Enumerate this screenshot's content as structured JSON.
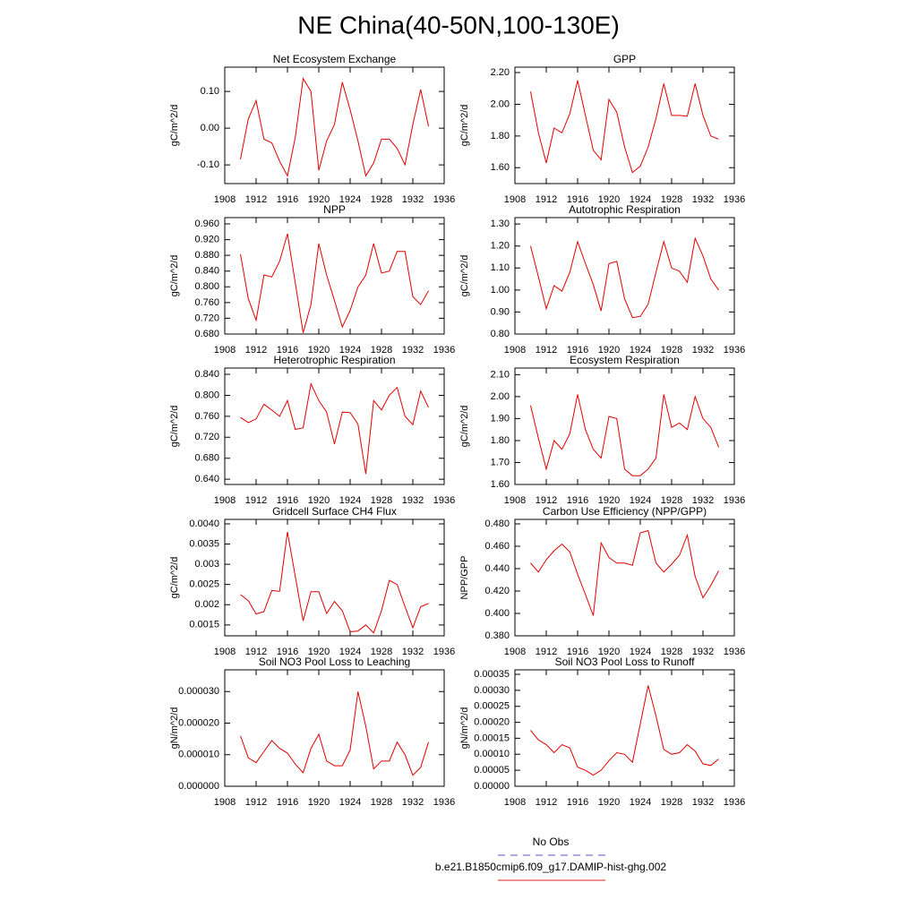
{
  "title": "NE China(40-50N,100-130E)",
  "legend": [
    {
      "name": "No Obs",
      "color": "#5555cc",
      "dashed": true
    },
    {
      "name": "b.e21.B1850cmip6.f09_g17.DAMIP-hist-ghg.002",
      "color": "#e02020",
      "dashed": false
    }
  ],
  "chart_data": [
    {
      "type": "line",
      "title": "Net Ecosystem Exchange",
      "y_label": "gC/m^2/d",
      "color": "#e00000",
      "x": [
        1910,
        1911,
        1912,
        1913,
        1914,
        1915,
        1916,
        1917,
        1918,
        1919,
        1920,
        1921,
        1922,
        1923,
        1924,
        1925,
        1926,
        1927,
        1928,
        1929,
        1930,
        1931,
        1932,
        1933,
        1934
      ],
      "values": [
        -0.085,
        0.025,
        0.075,
        -0.03,
        -0.04,
        -0.09,
        -0.13,
        -0.025,
        0.135,
        0.1,
        -0.115,
        -0.035,
        0.01,
        0.125,
        0.05,
        -0.035,
        -0.13,
        -0.095,
        -0.03,
        -0.03,
        -0.055,
        -0.1,
        0.01,
        0.105,
        0.005
      ],
      "xlim": [
        1908,
        1936
      ],
      "xticks": [
        1908,
        1912,
        1916,
        1920,
        1924,
        1928,
        1932,
        1936
      ],
      "ylim": [
        -0.151,
        0.166
      ],
      "yticks": [
        {
          "value": -0.1,
          "label": "-0.10"
        },
        {
          "value": 0,
          "label": "0.00"
        },
        {
          "value": 0.1,
          "label": "0.10"
        }
      ]
    },
    {
      "type": "line",
      "title": "GPP",
      "y_label": "gC/m^2/d",
      "color": "#e00000",
      "x": [
        1910,
        1911,
        1912,
        1913,
        1914,
        1915,
        1916,
        1917,
        1918,
        1919,
        1920,
        1921,
        1922,
        1923,
        1924,
        1925,
        1926,
        1927,
        1928,
        1929,
        1930,
        1931,
        1932,
        1933,
        1934
      ],
      "values": [
        2.08,
        1.82,
        1.63,
        1.85,
        1.82,
        1.94,
        2.15,
        1.93,
        1.71,
        1.65,
        2.03,
        1.95,
        1.73,
        1.57,
        1.61,
        1.73,
        1.91,
        2.13,
        1.93,
        1.93,
        1.925,
        2.13,
        1.93,
        1.8,
        1.78
      ],
      "xlim": [
        1908,
        1936
      ],
      "xticks": [
        1908,
        1912,
        1916,
        1920,
        1924,
        1928,
        1932,
        1936
      ],
      "ylim": [
        1.5,
        2.234
      ],
      "yticks": [
        {
          "value": 1.6,
          "label": "1.60"
        },
        {
          "value": 1.8,
          "label": "1.80"
        },
        {
          "value": 2.0,
          "label": "2.00"
        },
        {
          "value": 2.2,
          "label": "2.20"
        }
      ]
    },
    {
      "type": "line",
      "title": "NPP",
      "y_label": "gC/m^2/d",
      "color": "#e00000",
      "x": [
        1910,
        1911,
        1912,
        1913,
        1914,
        1915,
        1916,
        1917,
        1918,
        1919,
        1920,
        1921,
        1922,
        1923,
        1924,
        1925,
        1926,
        1927,
        1928,
        1929,
        1930,
        1931,
        1932,
        1933,
        1934
      ],
      "values": [
        0.883,
        0.77,
        0.715,
        0.83,
        0.825,
        0.865,
        0.935,
        0.81,
        0.683,
        0.755,
        0.91,
        0.83,
        0.765,
        0.698,
        0.74,
        0.8,
        0.83,
        0.91,
        0.835,
        0.84,
        0.89,
        0.89,
        0.775,
        0.755,
        0.79
      ],
      "xlim": [
        1908,
        1936
      ],
      "xticks": [
        1908,
        1912,
        1916,
        1920,
        1924,
        1928,
        1932,
        1936
      ],
      "ylim": [
        0.68,
        0.976
      ],
      "yticks": [
        {
          "value": 0.68,
          "label": "0.680"
        },
        {
          "value": 0.72,
          "label": "0.720"
        },
        {
          "value": 0.76,
          "label": "0.760"
        },
        {
          "value": 0.8,
          "label": "0.800"
        },
        {
          "value": 0.84,
          "label": "0.840"
        },
        {
          "value": 0.88,
          "label": "0.880"
        },
        {
          "value": 0.92,
          "label": "0.920"
        },
        {
          "value": 0.96,
          "label": "0.960"
        }
      ]
    },
    {
      "type": "line",
      "title": "Autotrophic Respiration",
      "y_label": "gC/m^2/d",
      "color": "#e00000",
      "x": [
        1910,
        1911,
        1912,
        1913,
        1914,
        1915,
        1916,
        1917,
        1918,
        1919,
        1920,
        1921,
        1922,
        1923,
        1924,
        1925,
        1926,
        1927,
        1928,
        1929,
        1930,
        1931,
        1932,
        1933,
        1934
      ],
      "values": [
        1.2,
        1.06,
        0.915,
        1.02,
        0.995,
        1.08,
        1.22,
        1.12,
        1.025,
        0.905,
        1.12,
        1.13,
        0.96,
        0.875,
        0.88,
        0.935,
        1.08,
        1.22,
        1.1,
        1.085,
        1.035,
        1.235,
        1.155,
        1.05,
        1.0
      ],
      "xlim": [
        1908,
        1936
      ],
      "xticks": [
        1908,
        1912,
        1916,
        1920,
        1924,
        1928,
        1932,
        1936
      ],
      "ylim": [
        0.8,
        1.329
      ],
      "yticks": [
        {
          "value": 0.8,
          "label": "0.80"
        },
        {
          "value": 0.9,
          "label": "0.90"
        },
        {
          "value": 1.0,
          "label": "1.00"
        },
        {
          "value": 1.1,
          "label": "1.10"
        },
        {
          "value": 1.2,
          "label": "1.20"
        },
        {
          "value": 1.3,
          "label": "1.30"
        }
      ]
    },
    {
      "type": "line",
      "title": "Heterotrophic Respiration",
      "y_label": "gC/m^2/d",
      "color": "#e00000",
      "x": [
        1910,
        1911,
        1912,
        1913,
        1914,
        1915,
        1916,
        1917,
        1918,
        1919,
        1920,
        1921,
        1922,
        1923,
        1924,
        1925,
        1926,
        1927,
        1928,
        1929,
        1930,
        1931,
        1932,
        1933,
        1934
      ],
      "values": [
        0.758,
        0.748,
        0.755,
        0.783,
        0.772,
        0.76,
        0.79,
        0.735,
        0.738,
        0.822,
        0.79,
        0.768,
        0.707,
        0.768,
        0.767,
        0.745,
        0.65,
        0.79,
        0.772,
        0.8,
        0.815,
        0.76,
        0.744,
        0.808,
        0.777
      ],
      "xlim": [
        1908,
        1936
      ],
      "xticks": [
        1908,
        1912,
        1916,
        1920,
        1924,
        1928,
        1932,
        1936
      ],
      "ylim": [
        0.63,
        0.852
      ],
      "yticks": [
        {
          "value": 0.64,
          "label": "0.640"
        },
        {
          "value": 0.68,
          "label": "0.680"
        },
        {
          "value": 0.72,
          "label": "0.720"
        },
        {
          "value": 0.76,
          "label": "0.760"
        },
        {
          "value": 0.8,
          "label": "0.800"
        },
        {
          "value": 0.84,
          "label": "0.840"
        }
      ]
    },
    {
      "type": "line",
      "title": "Ecosystem Respiration",
      "y_label": "gC/m^2/d",
      "color": "#e00000",
      "x": [
        1910,
        1911,
        1912,
        1913,
        1914,
        1915,
        1916,
        1917,
        1918,
        1919,
        1920,
        1921,
        1922,
        1923,
        1924,
        1925,
        1926,
        1927,
        1928,
        1929,
        1930,
        1931,
        1932,
        1933,
        1934
      ],
      "values": [
        1.96,
        1.81,
        1.67,
        1.8,
        1.76,
        1.83,
        2.01,
        1.85,
        1.76,
        1.72,
        1.91,
        1.9,
        1.67,
        1.64,
        1.64,
        1.67,
        1.72,
        2.01,
        1.86,
        1.88,
        1.85,
        2.0,
        1.9,
        1.86,
        1.77
      ],
      "xlim": [
        1908,
        1936
      ],
      "xticks": [
        1908,
        1912,
        1916,
        1920,
        1924,
        1928,
        1932,
        1936
      ],
      "ylim": [
        1.6,
        2.13
      ],
      "yticks": [
        {
          "value": 1.6,
          "label": "1.60"
        },
        {
          "value": 1.7,
          "label": "1.70"
        },
        {
          "value": 1.8,
          "label": "1.80"
        },
        {
          "value": 1.9,
          "label": "1.90"
        },
        {
          "value": 2.0,
          "label": "2.00"
        },
        {
          "value": 2.1,
          "label": "2.10"
        }
      ]
    },
    {
      "type": "line",
      "title": "Gridcell Surface CH4 Flux",
      "y_label": "gC/m^2/d",
      "color": "#e00000",
      "x": [
        1910,
        1911,
        1912,
        1913,
        1914,
        1915,
        1916,
        1917,
        1918,
        1919,
        1920,
        1921,
        1922,
        1923,
        1924,
        1925,
        1926,
        1927,
        1928,
        1929,
        1930,
        1931,
        1932,
        1933,
        1934
      ],
      "values": [
        0.00225,
        0.0021,
        0.00177,
        0.00183,
        0.00235,
        0.00233,
        0.0038,
        0.0027,
        0.0016,
        0.00232,
        0.00232,
        0.00178,
        0.00208,
        0.00185,
        0.00133,
        0.00135,
        0.0015,
        0.0013,
        0.00185,
        0.0026,
        0.0025,
        0.00195,
        0.00143,
        0.00195,
        0.00203
      ],
      "xlim": [
        1908,
        1936
      ],
      "xticks": [
        1908,
        1912,
        1916,
        1920,
        1924,
        1928,
        1932,
        1936
      ],
      "ylim": [
        0.00123,
        0.00411
      ],
      "yticks": [
        0.0015,
        0.002,
        0.0025,
        0.003,
        0.0035,
        {
          "value": 0.004,
          "label": "0.0040"
        }
      ]
    },
    {
      "type": "line",
      "title": "Carbon Use Efficiency (NPP/GPP)",
      "y_label": "NPP/GPP",
      "color": "#e00000",
      "x": [
        1910,
        1911,
        1912,
        1913,
        1914,
        1915,
        1916,
        1917,
        1918,
        1919,
        1920,
        1921,
        1922,
        1923,
        1924,
        1925,
        1926,
        1927,
        1928,
        1929,
        1930,
        1931,
        1932,
        1933,
        1934
      ],
      "values": [
        0.445,
        0.437,
        0.448,
        0.456,
        0.462,
        0.455,
        0.435,
        0.417,
        0.398,
        0.463,
        0.45,
        0.445,
        0.445,
        0.443,
        0.472,
        0.474,
        0.445,
        0.437,
        0.444,
        0.452,
        0.47,
        0.433,
        0.414,
        0.425,
        0.438
      ],
      "xlim": [
        1908,
        1936
      ],
      "xticks": [
        1908,
        1912,
        1916,
        1920,
        1924,
        1928,
        1932,
        1936
      ],
      "ylim": [
        0.38,
        0.484
      ],
      "yticks": [
        {
          "value": 0.38,
          "label": "0.380"
        },
        {
          "value": 0.4,
          "label": "0.400"
        },
        {
          "value": 0.42,
          "label": "0.420"
        },
        {
          "value": 0.44,
          "label": "0.440"
        },
        {
          "value": 0.46,
          "label": "0.460"
        },
        {
          "value": 0.48,
          "label": "0.480"
        }
      ]
    },
    {
      "type": "line",
      "title": "Soil NO3 Pool Loss to Leaching",
      "y_label": "gN/m^2/d",
      "color": "#e00000",
      "x": [
        1910,
        1911,
        1912,
        1913,
        1914,
        1915,
        1916,
        1917,
        1918,
        1919,
        1920,
        1921,
        1922,
        1923,
        1924,
        1925,
        1926,
        1927,
        1928,
        1929,
        1930,
        1931,
        1932,
        1933,
        1934
      ],
      "values": [
        1.6e-05,
        9e-06,
        7.5e-06,
        1.1e-05,
        1.45e-05,
        1.2e-05,
        1.05e-05,
        7e-06,
        4.3e-06,
        1.2e-05,
        1.65e-05,
        8e-06,
        6.5e-06,
        6.5e-06,
        1.15e-05,
        3e-05,
        1.9e-05,
        5.5e-06,
        8e-06,
        8e-06,
        1.4e-05,
        1e-05,
        3.5e-06,
        6e-06,
        1.4e-05
      ],
      "xlim": [
        1908,
        1936
      ],
      "xticks": [
        1908,
        1912,
        1916,
        1920,
        1924,
        1928,
        1932,
        1936
      ],
      "ylim": [
        0,
        3.69e-05
      ],
      "yticks": [
        {
          "value": 0,
          "label": "0.000000"
        },
        {
          "value": 1e-05,
          "label": "0.000010"
        },
        {
          "value": 2e-05,
          "label": "0.000020"
        },
        {
          "value": 3e-05,
          "label": "0.000030"
        }
      ]
    },
    {
      "type": "line",
      "title": "Soil NO3 Pool Loss to Runoff",
      "y_label": "gN/m^2/d",
      "color": "#e00000",
      "x": [
        1910,
        1911,
        1912,
        1913,
        1914,
        1915,
        1916,
        1917,
        1918,
        1919,
        1920,
        1921,
        1922,
        1923,
        1924,
        1925,
        1926,
        1927,
        1928,
        1929,
        1930,
        1931,
        1932,
        1933,
        1934
      ],
      "values": [
        0.000175,
        0.000145,
        0.00013,
        0.000105,
        0.00013,
        0.00012,
        6e-05,
        5e-05,
        3.5e-05,
        5e-05,
        8e-05,
        0.000105,
        0.0001,
        7.5e-05,
        0.000195,
        0.000315,
        0.00022,
        0.000115,
        0.0001,
        0.000105,
        0.00013,
        0.00011,
        7e-05,
        6.5e-05,
        8.5e-05
      ],
      "xlim": [
        1908,
        1936
      ],
      "xticks": [
        1908,
        1912,
        1916,
        1920,
        1924,
        1928,
        1932,
        1936
      ],
      "ylim": [
        0,
        0.000364
      ],
      "yticks": [
        {
          "value": 0,
          "label": "0.00000"
        },
        {
          "value": 5e-05,
          "label": "0.00005"
        },
        {
          "value": 0.0001,
          "label": "0.00010"
        },
        {
          "value": 0.00015,
          "label": "0.00015"
        },
        {
          "value": 0.0002,
          "label": "0.00020"
        },
        {
          "value": 0.00025,
          "label": "0.00025"
        },
        {
          "value": 0.0003,
          "label": "0.00030"
        },
        {
          "value": 0.00035,
          "label": "0.00035"
        }
      ]
    }
  ]
}
